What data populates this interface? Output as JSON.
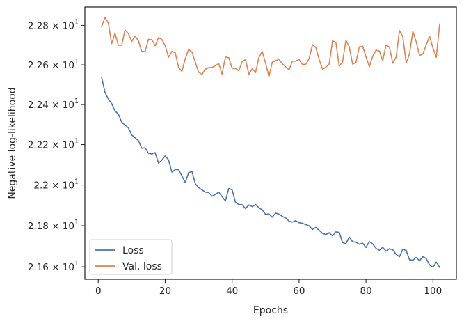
{
  "chart_data": {
    "type": "line",
    "title": "",
    "xlabel": "Epochs",
    "ylabel": "Negative log-likelihood",
    "xlim": [
      -4,
      107
    ],
    "ylim": [
      21.54,
      22.895
    ],
    "y_scale": "log",
    "grid": false,
    "legend_position": "lower-left",
    "x_ticks": [
      0,
      20,
      40,
      60,
      80,
      100
    ],
    "y_ticks": [
      {
        "value": 21.6,
        "mantissa": "2.16",
        "exponent": "1"
      },
      {
        "value": 21.8,
        "mantissa": "2.18",
        "exponent": "1"
      },
      {
        "value": 22.0,
        "mantissa": "2.2",
        "exponent": "1"
      },
      {
        "value": 22.2,
        "mantissa": "2.22",
        "exponent": "1"
      },
      {
        "value": 22.4,
        "mantissa": "2.24",
        "exponent": "1"
      },
      {
        "value": 22.6,
        "mantissa": "2.26",
        "exponent": "1"
      },
      {
        "value": 22.8,
        "mantissa": "2.28",
        "exponent": "1"
      }
    ],
    "x": [
      1,
      2,
      3,
      4,
      5,
      6,
      7,
      8,
      9,
      10,
      11,
      12,
      13,
      14,
      15,
      16,
      17,
      18,
      19,
      20,
      21,
      22,
      23,
      24,
      25,
      26,
      27,
      28,
      29,
      30,
      31,
      32,
      33,
      34,
      35,
      36,
      37,
      38,
      39,
      40,
      41,
      42,
      43,
      44,
      45,
      46,
      47,
      48,
      49,
      50,
      51,
      52,
      53,
      54,
      55,
      56,
      57,
      58,
      59,
      60,
      61,
      62,
      63,
      64,
      65,
      66,
      67,
      68,
      69,
      70,
      71,
      72,
      73,
      74,
      75,
      76,
      77,
      78,
      79,
      80,
      81,
      82,
      83,
      84,
      85,
      86,
      87,
      88,
      89,
      90,
      91,
      92,
      93,
      94,
      95,
      96,
      97,
      98,
      99,
      100,
      101,
      102
    ],
    "series": [
      {
        "name": "Loss",
        "color": "#4c72b0",
        "values": [
          22.537,
          22.462,
          22.428,
          22.405,
          22.368,
          22.352,
          22.312,
          22.297,
          22.283,
          22.248,
          22.234,
          22.219,
          22.182,
          22.184,
          22.157,
          22.153,
          22.16,
          22.108,
          22.123,
          22.144,
          22.124,
          22.064,
          22.076,
          22.076,
          22.045,
          22.012,
          22.061,
          22.067,
          22.006,
          21.987,
          21.976,
          21.965,
          21.963,
          21.945,
          21.954,
          21.965,
          21.943,
          21.922,
          21.983,
          21.976,
          21.915,
          21.904,
          21.903,
          21.884,
          21.902,
          21.894,
          21.904,
          21.888,
          21.878,
          21.855,
          21.858,
          21.842,
          21.862,
          21.857,
          21.846,
          21.838,
          21.823,
          21.818,
          21.825,
          21.815,
          21.812,
          21.806,
          21.8,
          21.782,
          21.792,
          21.778,
          21.763,
          21.757,
          21.766,
          21.75,
          21.77,
          21.768,
          21.718,
          21.712,
          21.745,
          21.722,
          21.72,
          21.71,
          21.715,
          21.694,
          21.723,
          21.711,
          21.69,
          21.681,
          21.695,
          21.676,
          21.688,
          21.683,
          21.661,
          21.649,
          21.686,
          21.68,
          21.635,
          21.632,
          21.646,
          21.63,
          21.65,
          21.64,
          21.609,
          21.598,
          21.623,
          21.598
        ]
      },
      {
        "name": "Val. loss",
        "color": "#dd8452",
        "values": [
          22.793,
          22.842,
          22.813,
          22.707,
          22.761,
          22.7,
          22.7,
          22.777,
          22.759,
          22.718,
          22.747,
          22.722,
          22.668,
          22.668,
          22.73,
          22.728,
          22.697,
          22.738,
          22.729,
          22.697,
          22.639,
          22.668,
          22.661,
          22.587,
          22.567,
          22.632,
          22.678,
          22.665,
          22.613,
          22.563,
          22.552,
          22.578,
          22.586,
          22.587,
          22.596,
          22.607,
          22.553,
          22.64,
          22.636,
          22.582,
          22.583,
          22.57,
          22.617,
          22.627,
          22.552,
          22.581,
          22.561,
          22.638,
          22.668,
          22.609,
          22.54,
          22.614,
          22.621,
          22.628,
          22.606,
          22.59,
          22.575,
          22.618,
          22.619,
          22.628,
          22.602,
          22.603,
          22.632,
          22.702,
          22.689,
          22.628,
          22.578,
          22.588,
          22.604,
          22.722,
          22.714,
          22.594,
          22.615,
          22.725,
          22.692,
          22.604,
          22.612,
          22.691,
          22.695,
          22.64,
          22.591,
          22.643,
          22.675,
          22.67,
          22.622,
          22.701,
          22.69,
          22.609,
          22.639,
          22.774,
          22.742,
          22.61,
          22.655,
          22.771,
          22.717,
          22.647,
          22.655,
          22.702,
          22.746,
          22.685,
          22.638,
          22.808
        ]
      }
    ]
  }
}
